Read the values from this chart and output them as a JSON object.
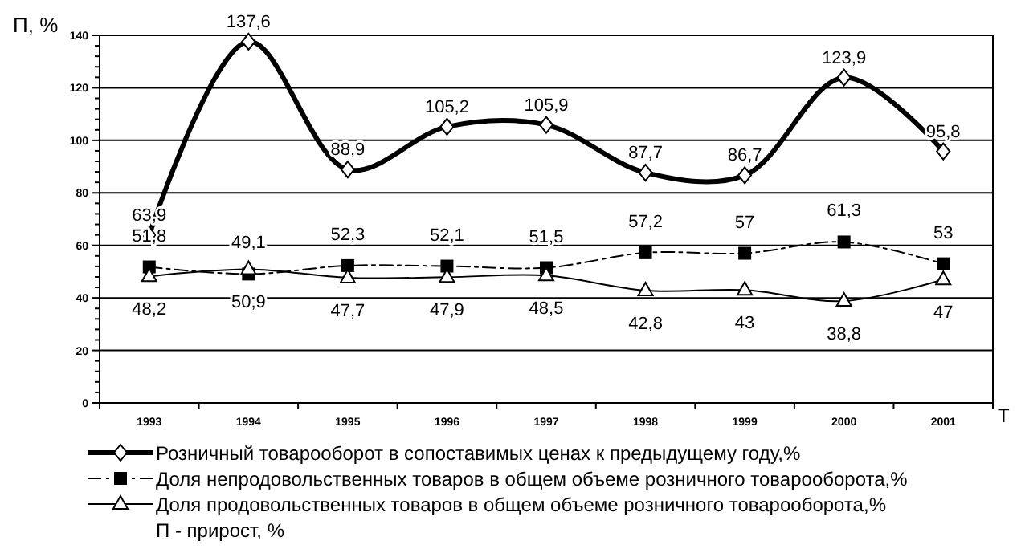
{
  "chart_data": {
    "type": "line",
    "ylabel": "П, %",
    "xlabel": "Т",
    "categories": [
      "1993",
      "1994",
      "1995",
      "1996",
      "1997",
      "1998",
      "1999",
      "2000",
      "2001"
    ],
    "series": [
      {
        "name": "Розничный товарооборот в сопоставимых ценах к предыдущему году,%",
        "color": "#000000",
        "marker": "diamond",
        "line_style": "solid",
        "values": [
          63.9,
          137.6,
          88.9,
          105.2,
          105.9,
          87.7,
          86.7,
          123.9,
          95.8
        ],
        "value_labels": [
          "63,9",
          "137,6",
          "88,9",
          "105,2",
          "105,9",
          "87,7",
          "86,7",
          "123,9",
          "95,8"
        ]
      },
      {
        "name": "Доля непродовольственных товаров в общем объеме розничного товарооборота,%",
        "color": "#000000",
        "marker": "square",
        "line_style": "dashed",
        "values": [
          51.8,
          49.1,
          52.3,
          52.1,
          51.5,
          57.2,
          57,
          61.3,
          53
        ],
        "value_labels": [
          "51,8",
          "49,1",
          "52,3",
          "52,1",
          "51,5",
          "57,2",
          "57",
          "61,3",
          "53"
        ]
      },
      {
        "name": "Доля продовольственных товаров в общем объеме розничного товарооборота,%",
        "color": "#000000",
        "marker": "triangle",
        "line_style": "solid",
        "values": [
          48.2,
          50.9,
          47.7,
          47.9,
          48.5,
          42.8,
          43,
          38.8,
          47
        ],
        "value_labels": [
          "48,2",
          "50,9",
          "47,7",
          "47,9",
          "48,5",
          "42,8",
          "43",
          "38,8",
          "47"
        ]
      }
    ],
    "ylim": [
      0,
      140
    ],
    "yticks": [
      0,
      {
        "value": 4,
        "label": null
      },
      {
        "value": 8,
        "label": null
      },
      {
        "value": 12,
        "label": null
      },
      {
        "value": 16,
        "label": null
      },
      20,
      {
        "value": 24,
        "label": null
      },
      {
        "value": 28,
        "label": null
      },
      {
        "value": 32,
        "label": null
      },
      {
        "value": 36,
        "label": null
      },
      40,
      {
        "value": 44,
        "label": null
      },
      {
        "value": 48,
        "label": null
      },
      {
        "value": 52,
        "label": null
      },
      {
        "value": 56,
        "label": null
      },
      60,
      {
        "value": 64,
        "label": null
      },
      {
        "value": 68,
        "label": null
      },
      {
        "value": 72,
        "label": null
      },
      {
        "value": 76,
        "label": null
      },
      80,
      {
        "value": 84,
        "label": null
      },
      {
        "value": 88,
        "label": null
      },
      {
        "value": 92,
        "label": null
      },
      {
        "value": 96,
        "label": null
      },
      100,
      {
        "value": 104,
        "label": null
      },
      {
        "value": 108,
        "label": null
      },
      {
        "value": 112,
        "label": null
      },
      {
        "value": 116,
        "label": null
      },
      120,
      {
        "value": 124,
        "label": null
      },
      {
        "value": 128,
        "label": null
      },
      {
        "value": 132,
        "label": null
      },
      {
        "value": 136,
        "label": null
      },
      140
    ],
    "grid": "y",
    "legend": "bottom",
    "annotations": [
      "П - прирост, %"
    ]
  }
}
